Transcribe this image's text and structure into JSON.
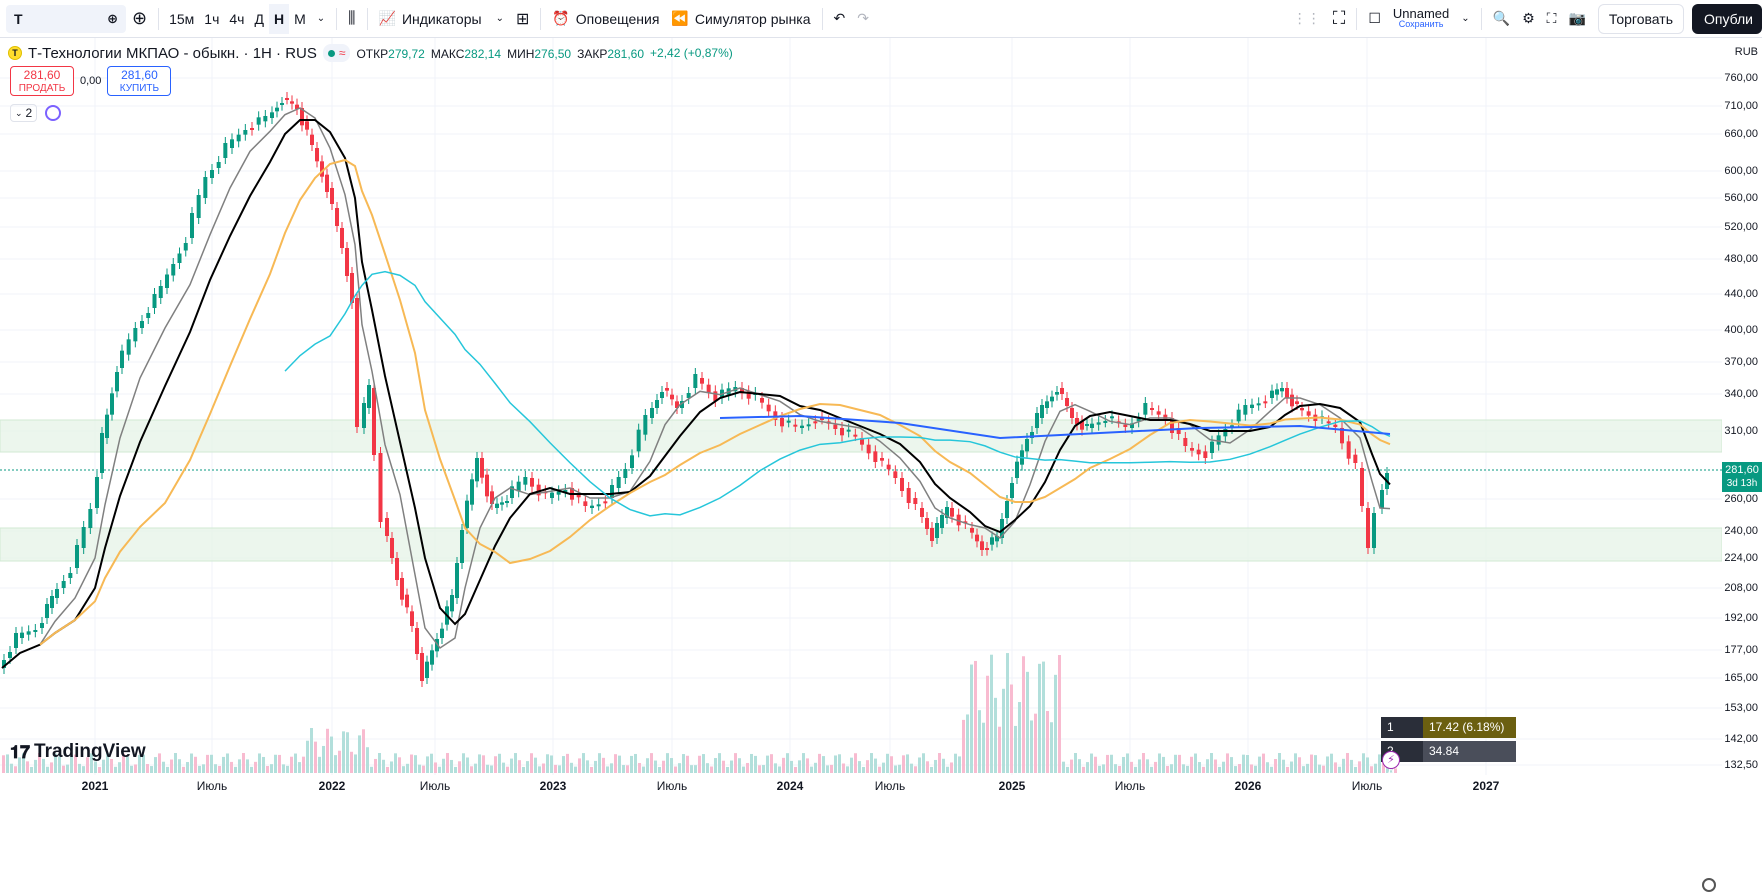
{
  "toolbar": {
    "symbol": "T",
    "timeframes": [
      "15м",
      "1ч",
      "4ч",
      "Д",
      "Н",
      "М"
    ],
    "active_timeframe": "Н",
    "indicators_label": "Индикаторы",
    "alerts_label": "Оповещения",
    "replay_label": "Симулятор рынка",
    "layout_name": "Unnamed",
    "layout_status": "Сохранить",
    "trade_label": "Торговать",
    "publish_label": "Опубли"
  },
  "legend": {
    "logo_letter": "T",
    "title": "Т-Технологии МКПАО - обыкн. · 1Н · RUS",
    "open_label": "ОТКР",
    "open": "279,72",
    "high_label": "МАКС",
    "high": "282,14",
    "low_label": "МИН",
    "low": "276,50",
    "close_label": "ЗАКР",
    "close": "281,60",
    "change": "+2,42 (+0,87%)"
  },
  "trade_panel": {
    "sell_price": "281,60",
    "sell_label": "ПРОДАТЬ",
    "spread": "0,00",
    "buy_price": "281,60",
    "buy_label": "КУПИТЬ"
  },
  "indicators_toggle": "2",
  "watermark": "TradingView",
  "price_axis": {
    "currency": "RUB",
    "ticks": [
      "760,00",
      "710,00",
      "660,00",
      "600,00",
      "560,00",
      "520,00",
      "480,00",
      "440,00",
      "400,00",
      "370,00",
      "340,00",
      "310,00",
      "260,00",
      "240,00",
      "224,00",
      "208,00",
      "192,00",
      "177,00",
      "165,00",
      "153,00",
      "142,00",
      "132,50"
    ],
    "current_price": "281,60",
    "countdown": "3d 13h"
  },
  "time_axis": {
    "ticks": [
      "2021",
      "Июль",
      "2022",
      "Июль",
      "2023",
      "Июль",
      "2024",
      "Июль",
      "2025",
      "Июль",
      "2026",
      "Июль",
      "2027"
    ]
  },
  "atr": [
    {
      "label": "1 ATR",
      "value": "17.42 (6.18%)"
    },
    {
      "label": "2 ATR",
      "value": "34.84 (12.37%)"
    }
  ],
  "colors": {
    "up": "#089981",
    "down": "#f23645",
    "ma_black": "#000000",
    "ma_gray": "#808080",
    "ma_orange": "#f7b955",
    "ma_cyan": "#26c6da",
    "ma_blue": "#2962ff",
    "zone": "#e8f5e9"
  }
}
